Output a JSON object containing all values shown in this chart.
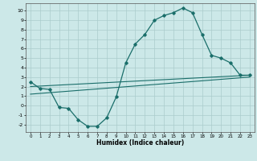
{
  "xlabel": "Humidex (Indice chaleur)",
  "ylabel": "",
  "background_color": "#cce8e8",
  "grid_color": "#aacccc",
  "line_color": "#1a6e6a",
  "xlim": [
    -0.5,
    23.5
  ],
  "ylim": [
    -2.8,
    10.8
  ],
  "xticks": [
    0,
    1,
    2,
    3,
    4,
    5,
    6,
    7,
    8,
    9,
    10,
    11,
    12,
    13,
    14,
    15,
    16,
    17,
    18,
    19,
    20,
    21,
    22,
    23
  ],
  "yticks": [
    -2,
    -1,
    0,
    1,
    2,
    3,
    4,
    5,
    6,
    7,
    8,
    9,
    10
  ],
  "curve1_x": [
    0,
    1,
    2,
    3,
    4,
    5,
    6,
    7,
    8,
    9,
    10,
    11,
    12,
    13,
    14,
    15,
    16,
    17,
    18,
    19,
    20,
    21,
    22,
    23
  ],
  "curve1_y": [
    2.5,
    1.8,
    1.7,
    -0.2,
    -0.3,
    -1.5,
    -2.2,
    -2.2,
    -1.3,
    0.9,
    4.5,
    6.5,
    7.5,
    9.0,
    9.5,
    9.8,
    10.3,
    9.8,
    7.5,
    5.3,
    5.0,
    4.5,
    3.2,
    3.2
  ],
  "line1_x": [
    0,
    23
  ],
  "line1_y": [
    2.0,
    3.2
  ],
  "line2_x": [
    0,
    23
  ],
  "line2_y": [
    1.2,
    3.0
  ]
}
